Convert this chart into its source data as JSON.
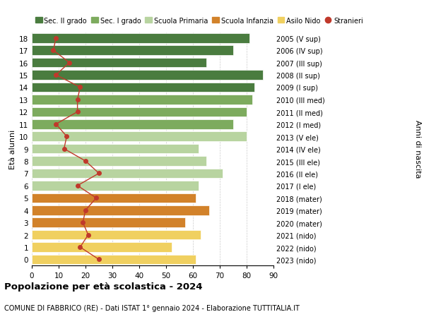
{
  "ages": [
    18,
    17,
    16,
    15,
    14,
    13,
    12,
    11,
    10,
    9,
    8,
    7,
    6,
    5,
    4,
    3,
    2,
    1,
    0
  ],
  "labels_right": [
    "2005 (V sup)",
    "2006 (IV sup)",
    "2007 (III sup)",
    "2008 (II sup)",
    "2009 (I sup)",
    "2010 (III med)",
    "2011 (II med)",
    "2012 (I med)",
    "2013 (V ele)",
    "2014 (IV ele)",
    "2015 (III ele)",
    "2016 (II ele)",
    "2017 (I ele)",
    "2018 (mater)",
    "2019 (mater)",
    "2020 (mater)",
    "2021 (nido)",
    "2022 (nido)",
    "2023 (nido)"
  ],
  "bar_values": [
    81,
    75,
    65,
    86,
    83,
    82,
    80,
    75,
    80,
    62,
    65,
    71,
    62,
    61,
    66,
    57,
    63,
    52,
    61
  ],
  "bar_colors": [
    "#4a7c3f",
    "#4a7c3f",
    "#4a7c3f",
    "#4a7c3f",
    "#4a7c3f",
    "#7dab5e",
    "#7dab5e",
    "#7dab5e",
    "#b8d4a0",
    "#b8d4a0",
    "#b8d4a0",
    "#b8d4a0",
    "#b8d4a0",
    "#d2822a",
    "#d2822a",
    "#d2822a",
    "#f0d060",
    "#f0d060",
    "#f0d060"
  ],
  "stranieri_values": [
    9,
    8,
    14,
    9,
    18,
    17,
    17,
    9,
    13,
    12,
    20,
    25,
    17,
    24,
    20,
    19,
    21,
    18,
    25
  ],
  "stranieri_color": "#c0392b",
  "legend_labels": [
    "Sec. II grado",
    "Sec. I grado",
    "Scuola Primaria",
    "Scuola Infanzia",
    "Asilo Nido",
    "Stranieri"
  ],
  "legend_colors": [
    "#4a7c3f",
    "#7dab5e",
    "#b8d4a0",
    "#d2822a",
    "#f0d060",
    "#c0392b"
  ],
  "title": "Popolazione per età scolastica - 2024",
  "subtitle": "COMUNE DI FABBRICO (RE) - Dati ISTAT 1° gennaio 2024 - Elaborazione TUTTITALIA.IT",
  "ylabel_left": "Età alunni",
  "ylabel_right": "Anni di nascita",
  "xlim": [
    0,
    90
  ],
  "xticks": [
    0,
    10,
    20,
    30,
    40,
    50,
    60,
    70,
    80,
    90
  ],
  "background_color": "#ffffff",
  "grid_color": "#cccccc"
}
